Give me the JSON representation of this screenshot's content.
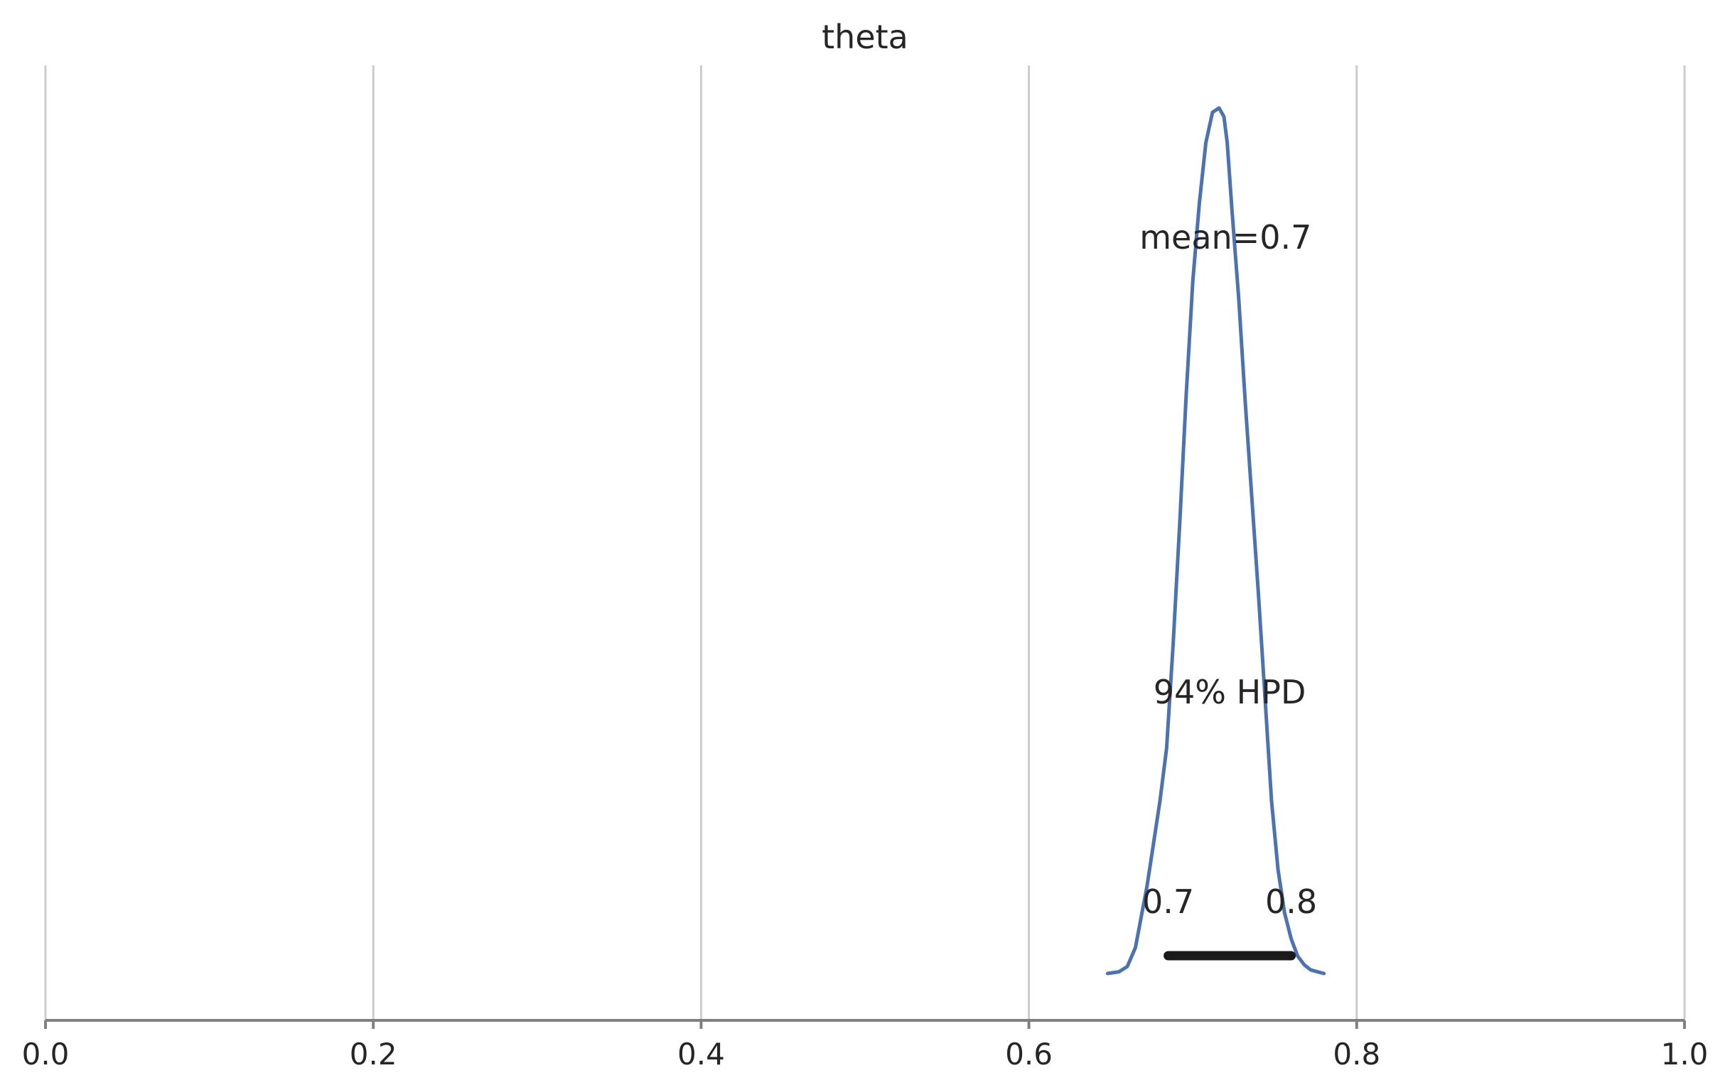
{
  "chart_data": {
    "type": "line",
    "title": "theta",
    "xlabel": "",
    "ylabel": "",
    "xlim": [
      0.0,
      1.0
    ],
    "x_ticks": [
      0.0,
      0.2,
      0.4,
      0.6,
      0.8,
      1.0
    ],
    "x_tick_labels": [
      "0.0",
      "0.2",
      "0.4",
      "0.6",
      "0.8",
      "1.0"
    ],
    "grid": "vertical",
    "y_axis_visible": false,
    "series": [
      {
        "color": "#4c72b0",
        "x": [
          0.648,
          0.655,
          0.66,
          0.665,
          0.668,
          0.672,
          0.676,
          0.68,
          0.684,
          0.688,
          0.692,
          0.696,
          0.7,
          0.704,
          0.708,
          0.712,
          0.716,
          0.719,
          0.721,
          0.724,
          0.728,
          0.732,
          0.736,
          0.74,
          0.744,
          0.748,
          0.752,
          0.756,
          0.76,
          0.764,
          0.768,
          0.772,
          0.776,
          0.78
        ],
        "density": [
          0.0,
          0.002,
          0.008,
          0.03,
          0.06,
          0.1,
          0.15,
          0.2,
          0.26,
          0.38,
          0.52,
          0.67,
          0.8,
          0.89,
          0.96,
          0.995,
          1.0,
          0.99,
          0.96,
          0.88,
          0.78,
          0.66,
          0.55,
          0.44,
          0.32,
          0.2,
          0.12,
          0.07,
          0.04,
          0.02,
          0.01,
          0.004,
          0.002,
          0.0
        ]
      }
    ],
    "hpd": {
      "level_label": "94% HPD",
      "low": 0.685,
      "high": 0.76,
      "low_label": "0.7",
      "high_label": "0.8"
    },
    "mean": {
      "value": 0.72,
      "label": "mean=0.7"
    }
  }
}
